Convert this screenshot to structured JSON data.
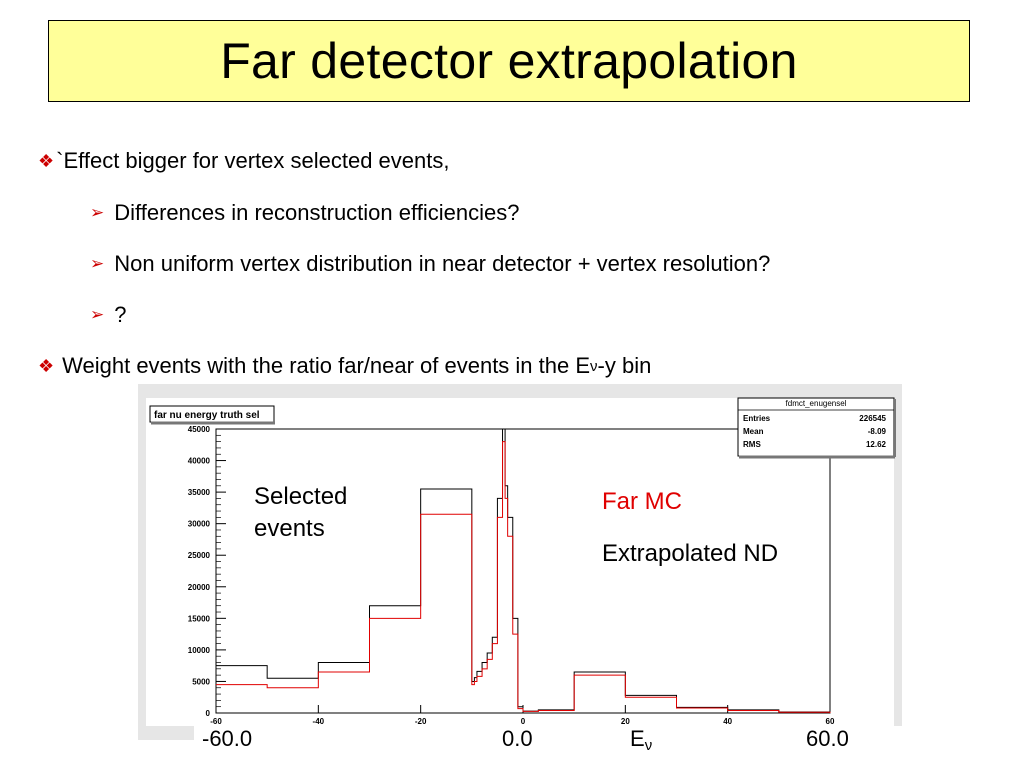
{
  "slide": {
    "title": "Far detector extrapolation",
    "bullets": [
      {
        "level": 1,
        "marker": "diamond",
        "text": "`Effect bigger for vertex selected events,"
      },
      {
        "level": 2,
        "marker": "arrow",
        "text": "Differences in reconstruction efficiencies?"
      },
      {
        "level": 2,
        "marker": "arrow",
        "text": "Non uniform vertex distribution in near detector + vertex resolution?"
      },
      {
        "level": 2,
        "marker": "arrow",
        "text": "?"
      },
      {
        "level": 1,
        "marker": "diamond",
        "text_before": "Weight events with the ratio far/near of events in the E",
        "subscript": "ν",
        "text_after": "-y bin"
      }
    ],
    "colors": {
      "title_bg": "#ffff99",
      "bullet_marker": "#cc0000",
      "far_mc": "#e00000",
      "extrapolated_nd": "#000000"
    }
  },
  "histogram": {
    "title": "far nu energy truth sel",
    "stats": {
      "name": "fdmct_enugensel",
      "rows": [
        {
          "label": "Entries",
          "value": "226545"
        },
        {
          "label": "Mean",
          "value": "-8.09"
        },
        {
          "label": "RMS",
          "value": "12.62"
        }
      ]
    },
    "y_tick_labels": [
      "0",
      "5000",
      "10000",
      "15000",
      "20000",
      "25000",
      "30000",
      "35000",
      "40000",
      "45000"
    ],
    "x_tick_labels": [
      "-60",
      "-40",
      "-20",
      "0",
      "20",
      "40",
      "60"
    ],
    "annotations": {
      "selected_line1": "Selected",
      "selected_line2": "events",
      "far_mc": "Far MC",
      "extrapolated_nd": "Extrapolated ND"
    },
    "axis_overlay": {
      "left": "-60.0",
      "zero": "0.0",
      "energy_label": "E",
      "energy_sub": "ν",
      "right": "60.0"
    }
  },
  "chart_data": {
    "type": "line",
    "title": "far nu energy truth sel",
    "xlabel": "Eν",
    "ylabel": "",
    "xlim": [
      -60,
      60
    ],
    "ylim": [
      0,
      45000
    ],
    "grid": false,
    "legend": "none",
    "series": [
      {
        "name": "Extrapolated ND",
        "color": "#000000",
        "steps": [
          {
            "x0": -60,
            "x1": -50,
            "y": 7500
          },
          {
            "x0": -50,
            "x1": -40,
            "y": 5500
          },
          {
            "x0": -40,
            "x1": -30,
            "y": 8000
          },
          {
            "x0": -30,
            "x1": -20,
            "y": 17000
          },
          {
            "x0": -20,
            "x1": -10,
            "y": 35500
          },
          {
            "x0": -10,
            "x1": -9.5,
            "y": 5000
          },
          {
            "x0": -9.5,
            "x1": -9,
            "y": 5600
          },
          {
            "x0": -9,
            "x1": -8,
            "y": 6600
          },
          {
            "x0": -8,
            "x1": -7,
            "y": 8000
          },
          {
            "x0": -7,
            "x1": -6,
            "y": 9500
          },
          {
            "x0": -6,
            "x1": -5,
            "y": 12000
          },
          {
            "x0": -5,
            "x1": -4,
            "y": 34000
          },
          {
            "x0": -4,
            "x1": -3.5,
            "y": 45000
          },
          {
            "x0": -3.5,
            "x1": -3,
            "y": 36000
          },
          {
            "x0": -3,
            "x1": -2,
            "y": 31000
          },
          {
            "x0": -2,
            "x1": -1,
            "y": 15000
          },
          {
            "x0": -1,
            "x1": 0,
            "y": 1000
          },
          {
            "x0": 0,
            "x1": 3,
            "y": 300
          },
          {
            "x0": 3,
            "x1": 10,
            "y": 500
          },
          {
            "x0": 10,
            "x1": 20,
            "y": 6500
          },
          {
            "x0": 20,
            "x1": 30,
            "y": 2800
          },
          {
            "x0": 30,
            "x1": 40,
            "y": 900
          },
          {
            "x0": 40,
            "x1": 50,
            "y": 500
          },
          {
            "x0": 50,
            "x1": 60,
            "y": 150
          }
        ]
      },
      {
        "name": "Far MC",
        "color": "#e00000",
        "steps": [
          {
            "x0": -60,
            "x1": -50,
            "y": 4500
          },
          {
            "x0": -50,
            "x1": -40,
            "y": 4000
          },
          {
            "x0": -40,
            "x1": -30,
            "y": 6500
          },
          {
            "x0": -30,
            "x1": -20,
            "y": 15000
          },
          {
            "x0": -20,
            "x1": -10,
            "y": 31500
          },
          {
            "x0": -10,
            "x1": -9.5,
            "y": 4500
          },
          {
            "x0": -9.5,
            "x1": -9,
            "y": 5000
          },
          {
            "x0": -9,
            "x1": -8,
            "y": 5800
          },
          {
            "x0": -8,
            "x1": -7,
            "y": 7000
          },
          {
            "x0": -7,
            "x1": -6,
            "y": 8500
          },
          {
            "x0": -6,
            "x1": -5,
            "y": 11000
          },
          {
            "x0": -5,
            "x1": -4,
            "y": 31000
          },
          {
            "x0": -4,
            "x1": -3.5,
            "y": 43000
          },
          {
            "x0": -3.5,
            "x1": -3,
            "y": 34000
          },
          {
            "x0": -3,
            "x1": -2,
            "y": 28000
          },
          {
            "x0": -2,
            "x1": -1,
            "y": 12500
          },
          {
            "x0": -1,
            "x1": 0,
            "y": 700
          },
          {
            "x0": 0,
            "x1": 3,
            "y": 250
          },
          {
            "x0": 3,
            "x1": 10,
            "y": 400
          },
          {
            "x0": 10,
            "x1": 20,
            "y": 6000
          },
          {
            "x0": 20,
            "x1": 30,
            "y": 2500
          },
          {
            "x0": 30,
            "x1": 40,
            "y": 800
          },
          {
            "x0": 40,
            "x1": 50,
            "y": 400
          },
          {
            "x0": 50,
            "x1": 60,
            "y": 120
          }
        ]
      }
    ]
  }
}
